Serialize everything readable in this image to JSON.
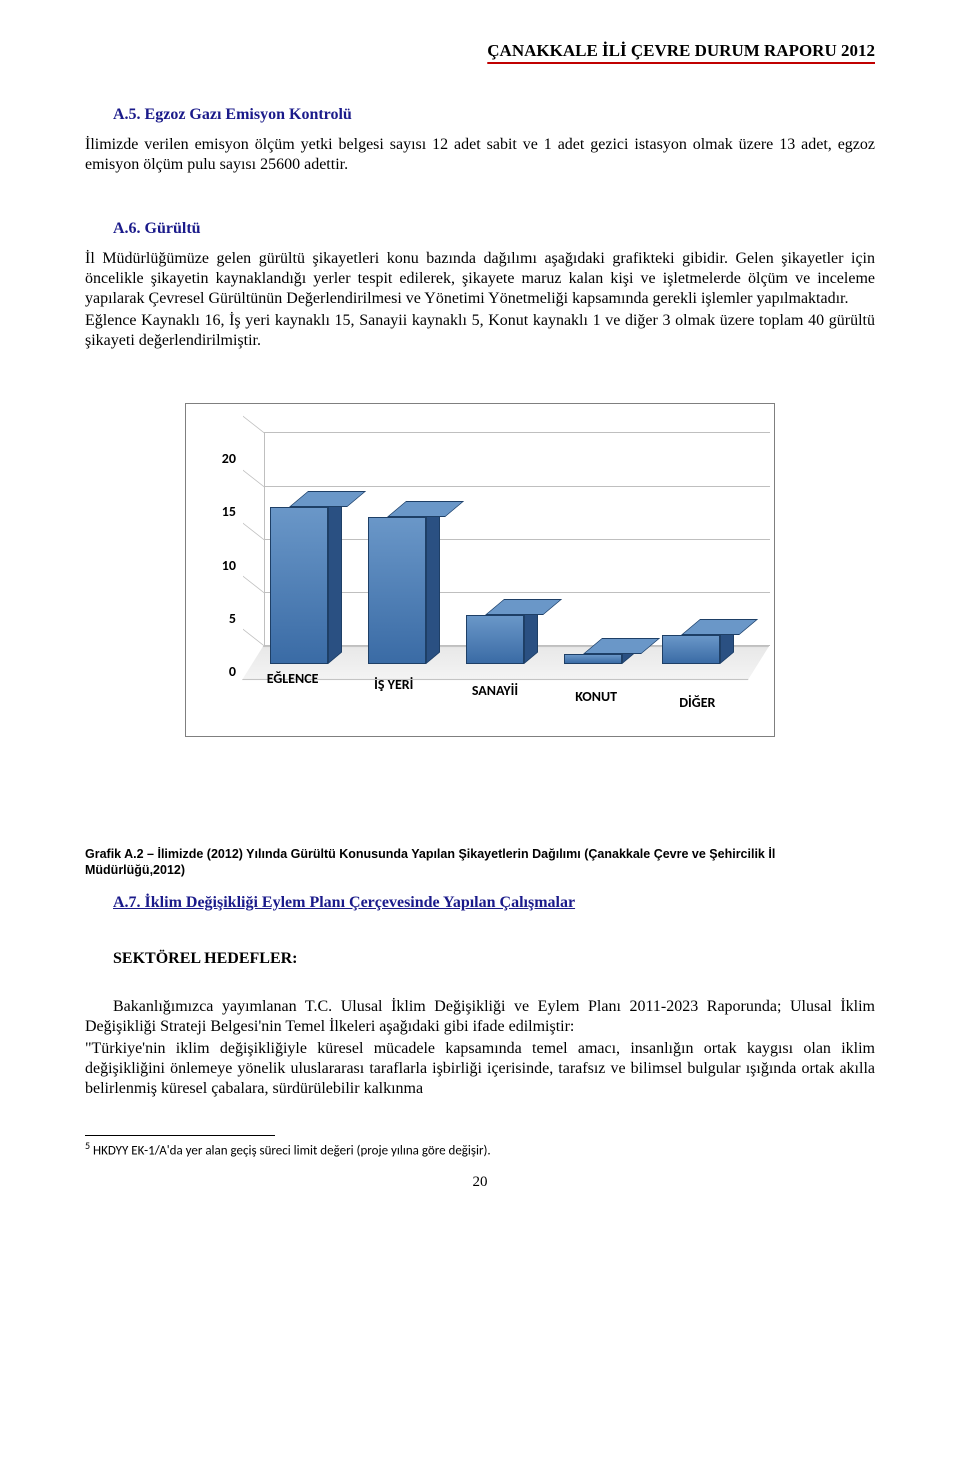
{
  "header": {
    "title": "ÇANAKKALE İLİ ÇEVRE DURUM RAPORU 2012"
  },
  "sectionA5": {
    "heading": "A.5. Egzoz Gazı Emisyon Kontrolü",
    "para1": "İlimizde verilen emisyon ölçüm yetki belgesi sayısı 12 adet sabit ve 1 adet gezici istasyon olmak üzere 13 adet, egzoz emisyon ölçüm pulu sayısı 25600 adettir."
  },
  "sectionA6": {
    "heading": "A.6. Gürültü",
    "para1": "İl Müdürlüğümüze gelen gürültü şikayetleri konu bazında dağılımı aşağıdaki grafikteki gibidir. Gelen şikayetler için öncelikle şikayetin kaynaklandığı yerler tespit edilerek, şikayete maruz kalan kişi ve işletmelerde ölçüm ve inceleme yapılarak Çevresel Gürültünün Değerlendirilmesi ve Yönetimi Yönetmeliği kapsamında gerekli işlemler yapılmaktadır.",
    "para2": "Eğlence Kaynaklı 16, İş yeri kaynaklı 15, Sanayii kaynaklı 5, Konut kaynaklı 1 ve diǧer 3 olmak üzere toplam 40 gürültü şikayeti değerlendirilmiştir."
  },
  "chart": {
    "type": "bar-3d",
    "categories": [
      "EĞLENCE",
      "İŞ YERİ",
      "SANAYİİ",
      "KONUT",
      "DİĞER"
    ],
    "values": [
      16,
      15,
      5,
      1,
      3
    ],
    "y_ticks": [
      0,
      5,
      10,
      15,
      20
    ],
    "ylim": [
      0,
      20
    ],
    "bar_color_front": "#3a6ba5",
    "bar_color_top": "#6a97c8",
    "bar_color_side": "#2a5082",
    "bar_border": "#1e3f66",
    "grid_color": "#bfbfbf",
    "floor_color": "#ededed",
    "background_color": "#ffffff",
    "axis_fontsize": 14,
    "axis_fontweight": "bold",
    "axis_fontfamily": "Calibri"
  },
  "figure_caption": "Grafik A.2 – İlimizde  (2012) Yılında Gürültü Konusunda Yapılan Şikayetlerin Dağılımı (Çanakkale Çevre ve Şehircilik İl Müdürlüğü,2012)",
  "sectionA7": {
    "heading": "A.7. İklim Değişikliği Eylem Planı Çerçevesinde Yapılan Çalışmalar",
    "subhead": "SEKTÖREL HEDEFLER:",
    "para1": "Bakanlığımızca yayımlanan T.C. Ulusal İklim Değişikliği ve Eylem Planı 2011-2023 Raporunda; Ulusal İklim Değişikliği Strateji Belgesi'nin Temel İlkeleri aşağıdaki gibi ifade edilmiştir:",
    "para2": "\"Türkiye'nin iklim değişikliğiyle küresel mücadele kapsamında temel amacı, insanlığın ortak kaygısı olan iklim değişikliğini önlemeye yönelik uluslararası taraflarla işbirliği içerisinde, tarafsız ve bilimsel bulgular ışığında ortak akılla belirlenmiş küresel çabalara, sürdürülebilir kalkınma"
  },
  "footnote": {
    "marker": "5",
    "text": "HKDYY EK-1/A'da yer alan geçiş süreci limit değeri (proje yılına göre değişir)."
  },
  "page_number": "20"
}
